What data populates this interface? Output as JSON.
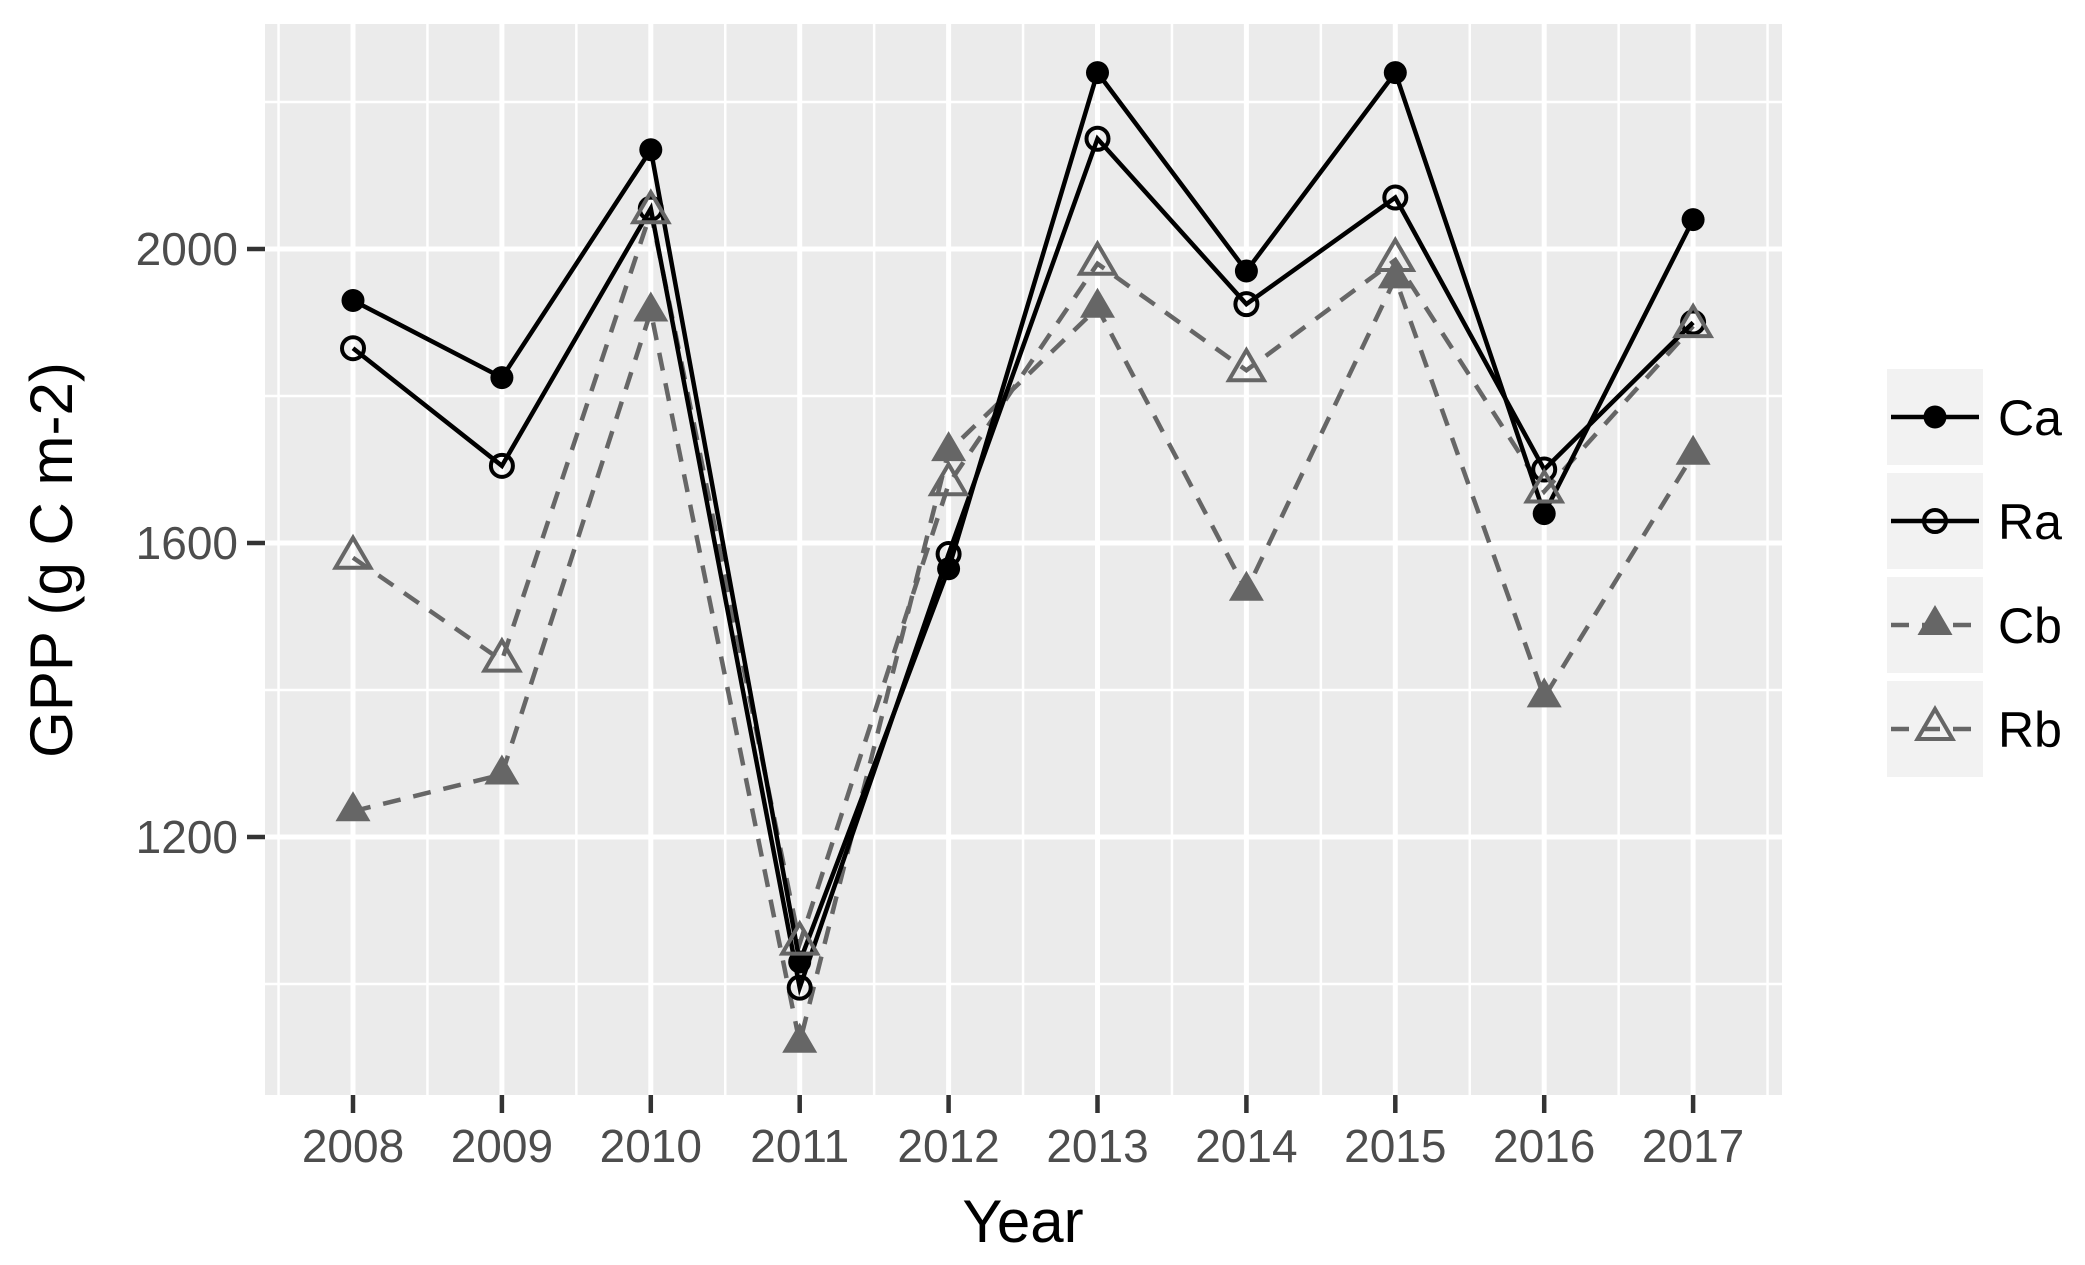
{
  "chart_data": {
    "type": "line",
    "title": "",
    "xlabel": "Year",
    "ylabel": "GPP (g C m-2)",
    "x": [
      2008,
      2009,
      2010,
      2011,
      2012,
      2013,
      2014,
      2015,
      2016,
      2017
    ],
    "x_tick_labels": [
      "2008",
      "2009",
      "2010",
      "2011",
      "2012",
      "2013",
      "2014",
      "2015",
      "2016",
      "2017"
    ],
    "y_ticks": [
      1200,
      1600,
      2000
    ],
    "y_minor_ticks": [
      1000,
      1400,
      1800,
      2200
    ],
    "ylim": [
      850,
      2305
    ],
    "grid": "major-and-minor-white-on-grey",
    "legend_position": "right",
    "series": [
      {
        "name": "Ca",
        "line_style": "solid",
        "marker": "filled-circle",
        "color": "#000000",
        "values": [
          1930,
          1825,
          2135,
          1030,
          1565,
          2240,
          1970,
          2240,
          1640,
          2040
        ]
      },
      {
        "name": "Ra",
        "line_style": "solid",
        "marker": "open-circle",
        "color": "#000000",
        "values": [
          1865,
          1705,
          2055,
          995,
          1585,
          2150,
          1925,
          2070,
          1700,
          1900
        ]
      },
      {
        "name": "Cb",
        "line_style": "dashed",
        "marker": "filled-triangle",
        "color": "#666666",
        "values": [
          1235,
          1285,
          1915,
          920,
          1725,
          1920,
          1535,
          1960,
          1390,
          1720
        ]
      },
      {
        "name": "Rb",
        "line_style": "dashed",
        "marker": "open-triangle",
        "color": "#666666",
        "values": [
          1580,
          1440,
          2050,
          1055,
          1680,
          1980,
          1835,
          1985,
          1670,
          1895
        ]
      }
    ],
    "colors": {
      "panel_background": "#EBEBEB",
      "gridline": "#FFFFFF",
      "tick_mark": "#333333",
      "tick_label": "#4D4D4D",
      "axis_title": "#000000",
      "legend_key_background": "#F2F2F2",
      "dashed_series": "#666666",
      "solid_series": "#000000"
    }
  }
}
